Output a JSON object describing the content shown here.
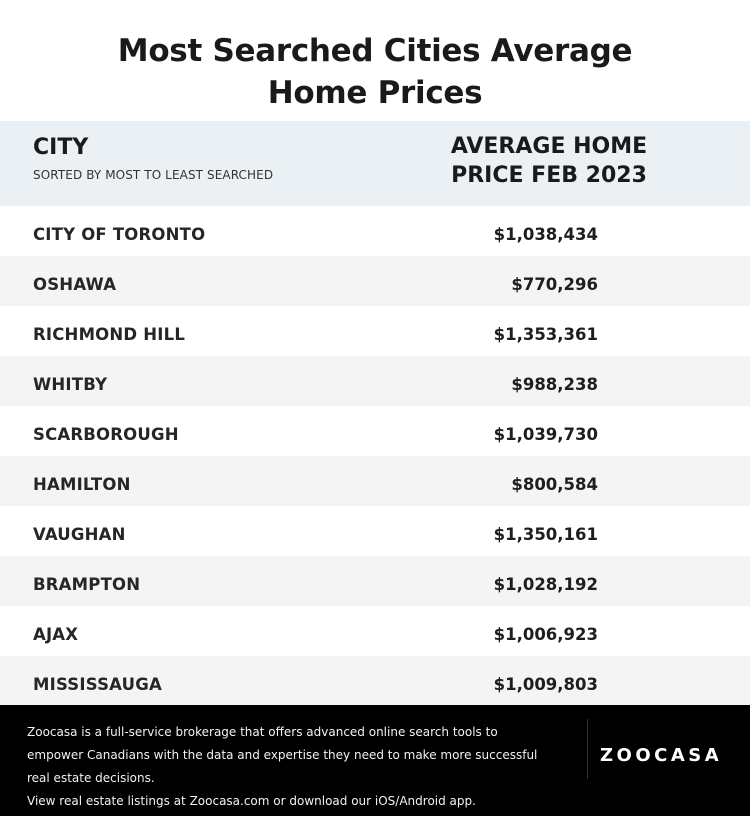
{
  "chart_data": {
    "type": "table",
    "title_lines": [
      "Most Searched Cities Average",
      "Home Prices"
    ],
    "columns": [
      {
        "label": "CITY",
        "sublabel": "SORTED BY MOST TO LEAST SEARCHED"
      },
      {
        "label_lines": [
          "AVERAGE HOME",
          "PRICE FEB 2023"
        ]
      }
    ],
    "rows": [
      {
        "city": "CITY OF TORONTO",
        "price": "$1,038,434"
      },
      {
        "city": "OSHAWA",
        "price": "$770,296"
      },
      {
        "city": "RICHMOND HILL",
        "price": "$1,353,361"
      },
      {
        "city": "WHITBY",
        "price": "$988,238"
      },
      {
        "city": "SCARBOROUGH",
        "price": "$1,039,730"
      },
      {
        "city": "HAMILTON",
        "price": "$800,584"
      },
      {
        "city": "VAUGHAN",
        "price": "$1,350,161"
      },
      {
        "city": "BRAMPTON",
        "price": "$1,028,192"
      },
      {
        "city": "AJAX",
        "price": "$1,006,923"
      },
      {
        "city": "MISSISSAUGA",
        "price": "$1,009,803"
      }
    ]
  },
  "footer": {
    "lines": [
      "Zoocasa is a full-service brokerage that offers advanced online search tools to",
      "empower Canadians with the data and expertise they need to make more successful",
      "real estate decisions.",
      "View real estate listings at Zoocasa.com or download our iOS/Android app."
    ],
    "logo_text": "ZOOCASA"
  },
  "colors": {
    "header_bg": "#eaf0f4",
    "stripe_bg": "#f4f4f4",
    "footer_bg": "#000000"
  }
}
